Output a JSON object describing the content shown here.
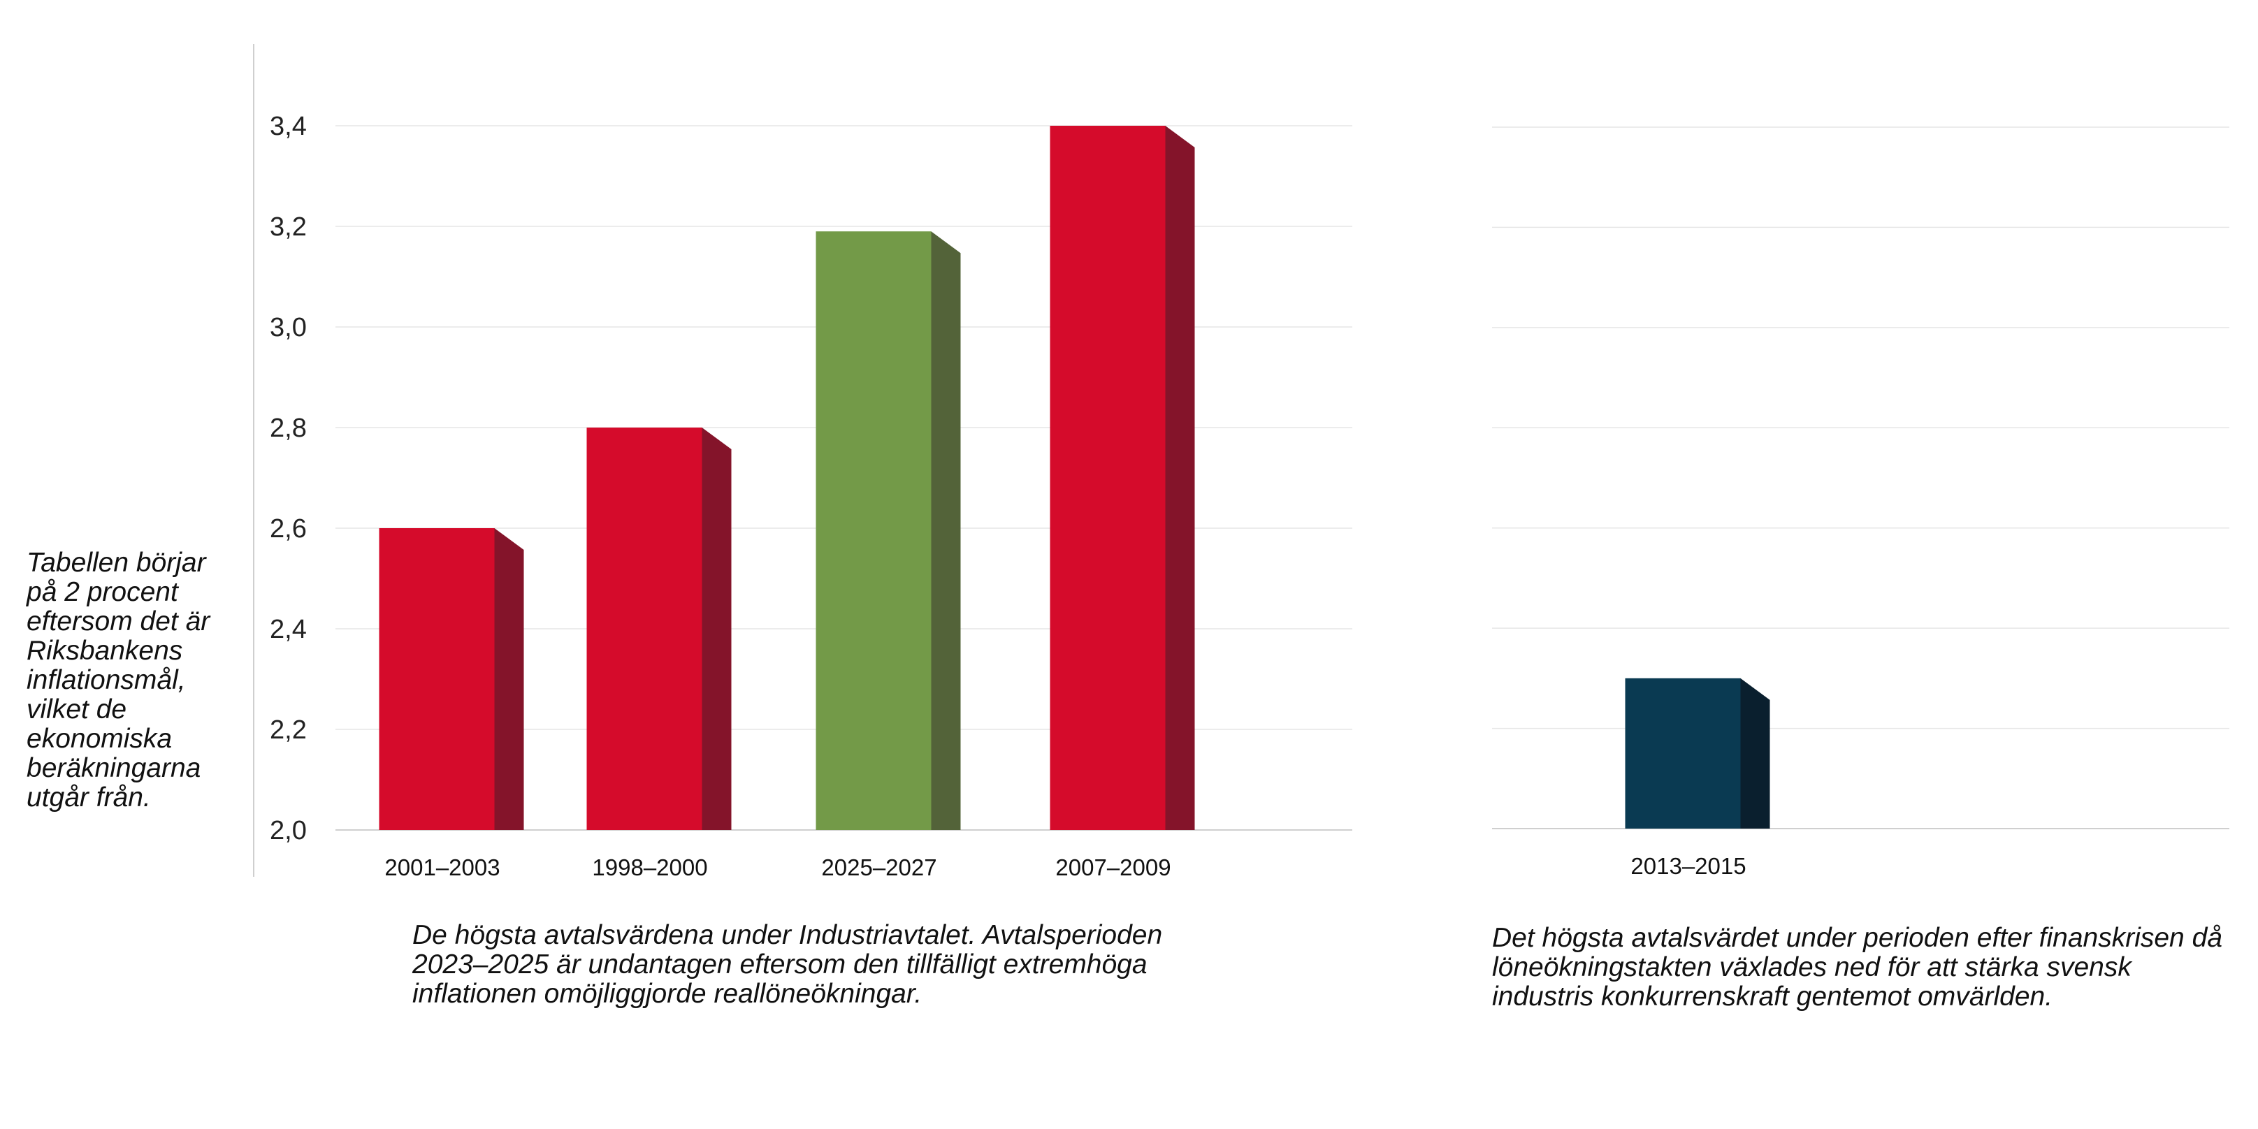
{
  "side_note": "Tabellen börjar på 2 procent eftersom det är Riksbankens inflationsmål, vilket de ekonomiska beräkningarna utgår från.",
  "colors": {
    "red": "#d50b2b",
    "red_side": "#84142a",
    "green": "#739a48",
    "green_side": "#536339",
    "navy": "#0a3a52",
    "navy_side": "#0a1f2e",
    "grid": "#e6e6e6",
    "axis": "#cfcfcf"
  },
  "chart_data": [
    {
      "type": "bar",
      "title": "",
      "caption": "De högsta avtalsvärdena under Industriavtalet. Avtalsperioden 2023–2025 är undantagen eftersom den tillfälligt extremhöga inflationen omöjliggjorde reallöneökningar.",
      "categories": [
        "2001–2003",
        "1998–2000",
        "2025–2027",
        "2007–2009"
      ],
      "values": [
        2.6,
        2.8,
        3.19,
        3.4
      ],
      "bar_colors": [
        "red",
        "red",
        "green",
        "red"
      ],
      "ylim": [
        2.0,
        3.4
      ],
      "yticks": [
        "2,0",
        "2,2",
        "2,4",
        "2,6",
        "2,8",
        "3,0",
        "3,2",
        "3,4"
      ],
      "grid": true,
      "xlabel": "",
      "ylabel": ""
    },
    {
      "type": "bar",
      "title": "",
      "caption": "Det högsta avtalsvärdet under perioden efter finanskrisen då löneökningstakten växlades ned för att stärka svensk industris konkurrenskraft gentemot omvärlden.",
      "categories": [
        "2013–2015"
      ],
      "values": [
        2.3
      ],
      "bar_colors": [
        "navy"
      ],
      "ylim": [
        2.0,
        3.4
      ],
      "grid": true,
      "xlabel": "",
      "ylabel": ""
    }
  ]
}
